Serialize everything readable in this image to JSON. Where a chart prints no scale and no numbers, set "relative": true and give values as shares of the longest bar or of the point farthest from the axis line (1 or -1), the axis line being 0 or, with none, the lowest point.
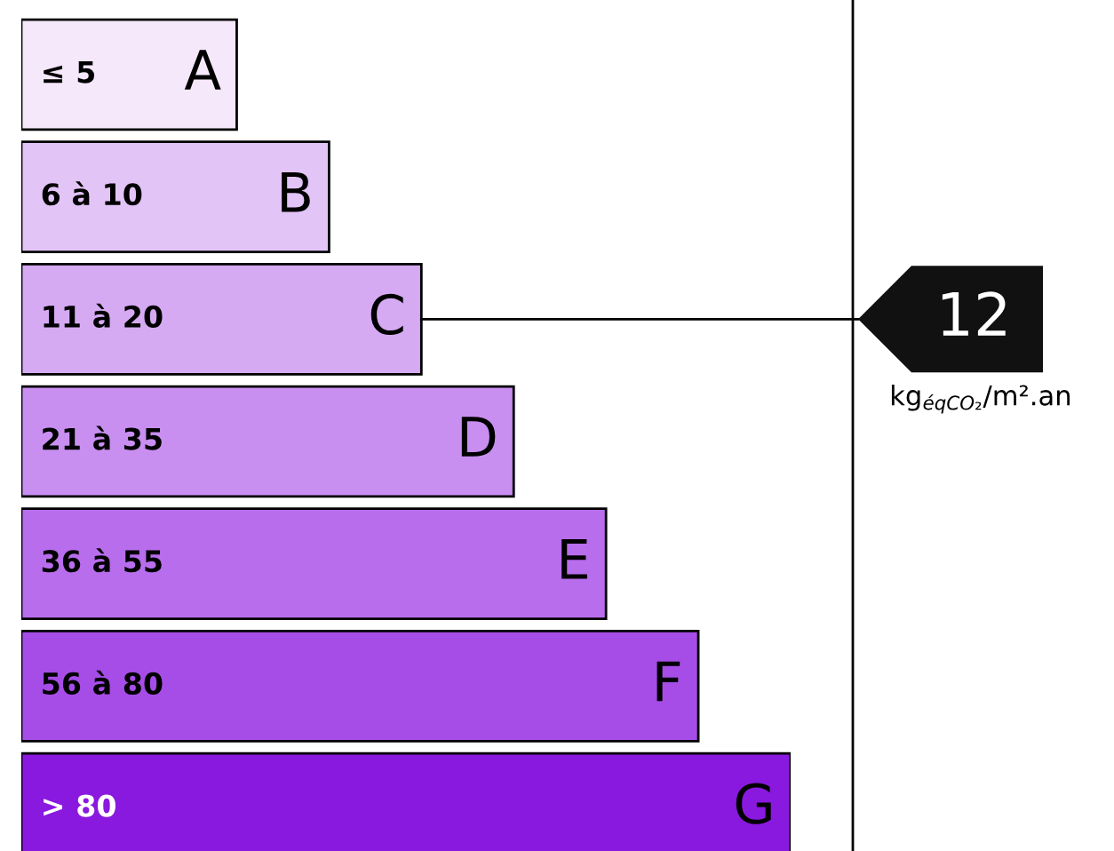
{
  "chart_data": {
    "type": "bar",
    "orientation": "horizontal",
    "relative": true,
    "categories": [
      "A",
      "B",
      "C",
      "D",
      "E",
      "F",
      "G"
    ],
    "values": [
      0.28,
      0.4,
      0.52,
      0.64,
      0.76,
      0.88,
      1
    ],
    "colors": [
      "#f6e8fb",
      "#e3c4f7",
      "#d5aaf3",
      "#c88ff0",
      "#b86ded",
      "#a64de8",
      "#8a19df"
    ],
    "annotations": [
      "≤ 5",
      "6 à 10",
      "11 à 20",
      "21 à 35",
      "36 à 55",
      "56 à 80",
      "> 80",
      "kg$_{éqCO₂}$/m².an"
    ],
    "ref_lines": [
      {
        "axis": "y",
        "value": "C",
        "label": "12",
        "color": "#000000"
      }
    ]
  }
}
